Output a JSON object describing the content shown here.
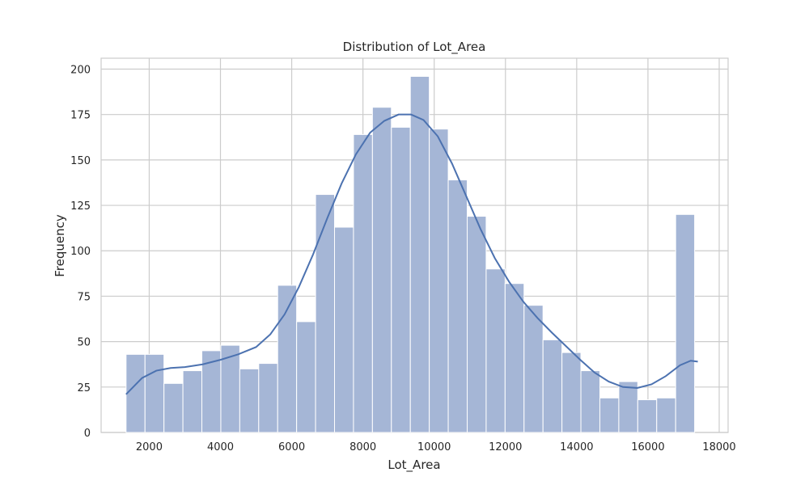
{
  "chart_data": {
    "type": "bar",
    "title": "Distribution of Lot_Area",
    "xlabel": "Lot_Area",
    "ylabel": "Frequency",
    "xlim": [
      650,
      18250
    ],
    "ylim": [
      0,
      206
    ],
    "x_ticks": [
      2000,
      4000,
      6000,
      8000,
      10000,
      12000,
      14000,
      16000,
      18000
    ],
    "y_ticks": [
      0,
      25,
      50,
      75,
      100,
      125,
      150,
      175,
      200
    ],
    "grid": true,
    "bin_edges": [
      1350,
      1882,
      2414,
      2946,
      3478,
      4010,
      4542,
      5074,
      5606,
      6138,
      6670,
      7202,
      7734,
      8266,
      8798,
      9330,
      9862,
      10394,
      10926,
      11458,
      11990,
      12522,
      13054,
      13586,
      14118,
      14650,
      15182,
      15714,
      16246,
      16778,
      17310
    ],
    "values": [
      43,
      43,
      27,
      34,
      45,
      48,
      35,
      38,
      81,
      61,
      131,
      113,
      164,
      179,
      168,
      196,
      167,
      139,
      119,
      90,
      82,
      70,
      51,
      44,
      34,
      19,
      28,
      18,
      19,
      120
    ],
    "kde": {
      "x": [
        1350,
        1800,
        2200,
        2600,
        3000,
        3500,
        4000,
        4500,
        5000,
        5400,
        5800,
        6200,
        6600,
        7000,
        7400,
        7800,
        8200,
        8600,
        9000,
        9350,
        9700,
        10100,
        10500,
        10900,
        11300,
        11700,
        12100,
        12500,
        12900,
        13300,
        13700,
        14100,
        14500,
        14900,
        15300,
        15700,
        16100,
        16500,
        16900,
        17200,
        17400
      ],
      "y": [
        21,
        30,
        34,
        35.5,
        36,
        37.5,
        40,
        43,
        47,
        54,
        65,
        80,
        98,
        118,
        137,
        153,
        165,
        171.5,
        175,
        175,
        172,
        163,
        148,
        130,
        112,
        96,
        83,
        72,
        63,
        55,
        47.5,
        40,
        33,
        28,
        25,
        24.5,
        26.5,
        31,
        37,
        39.5,
        39
      ]
    },
    "colors": {
      "bar_fill": "#a5b6d6",
      "bar_edge": "#ffffff",
      "kde_line": "#4c72b0",
      "grid": "#cccccc",
      "text": "#262626"
    }
  }
}
